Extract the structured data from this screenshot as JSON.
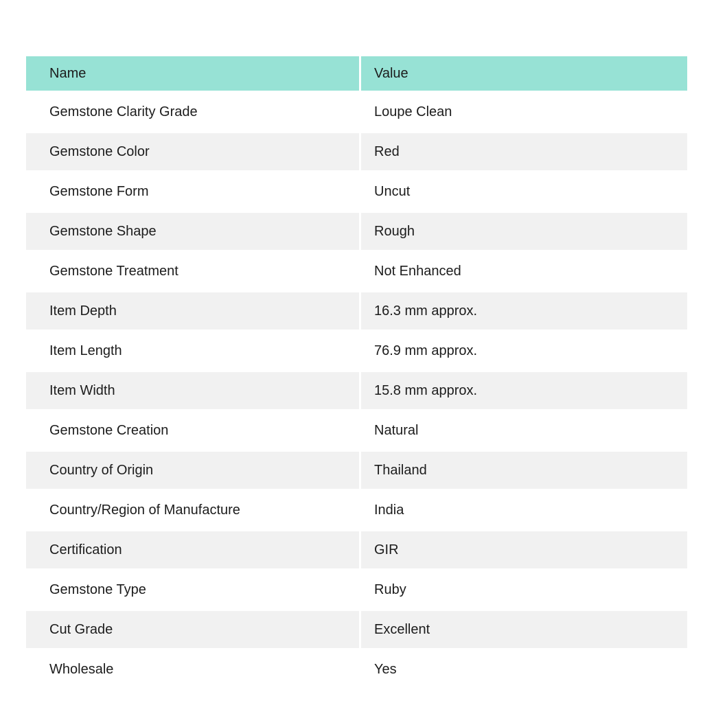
{
  "table": {
    "header": {
      "name_label": "Name",
      "value_label": "Value"
    },
    "colors": {
      "header_bg": "#97e2d5",
      "stripe_bg": "#f1f1f1",
      "row_bg": "#ffffff",
      "text": "#1c1c1c"
    },
    "rows": [
      {
        "name": "Gemstone Clarity Grade",
        "value": "Loupe Clean"
      },
      {
        "name": "Gemstone Color",
        "value": "Red"
      },
      {
        "name": "Gemstone Form",
        "value": "Uncut"
      },
      {
        "name": "Gemstone Shape",
        "value": "Rough"
      },
      {
        "name": "Gemstone Treatment",
        "value": "Not Enhanced"
      },
      {
        "name": "Item Depth",
        "value": "16.3 mm approx."
      },
      {
        "name": "Item Length",
        "value": "76.9 mm approx."
      },
      {
        "name": "Item Width",
        "value": "15.8 mm approx."
      },
      {
        "name": "Gemstone Creation",
        "value": "Natural"
      },
      {
        "name": "Country of Origin",
        "value": "Thailand"
      },
      {
        "name": "Country/Region of Manufacture",
        "value": "India"
      },
      {
        "name": "Certification",
        "value": "GIR"
      },
      {
        "name": "Gemstone Type",
        "value": "Ruby"
      },
      {
        "name": "Cut Grade",
        "value": "Excellent"
      },
      {
        "name": "Wholesale",
        "value": "Yes"
      }
    ]
  }
}
